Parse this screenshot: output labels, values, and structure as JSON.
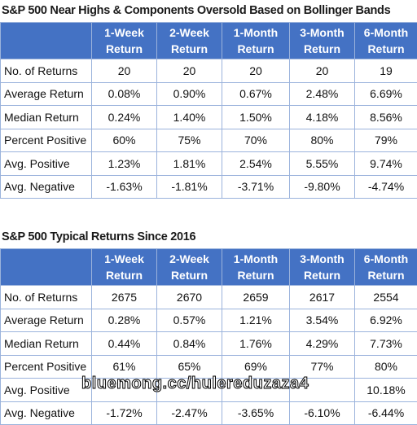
{
  "tables": [
    {
      "title": "S&P 500 Near Highs & Components Oversold Based on Bollinger Bands",
      "columns": [
        "1-Week Return",
        "2-Week Return",
        "1-Month Return",
        "3-Month Return",
        "6-Month Return"
      ],
      "rows": [
        [
          "No. of Returns",
          "20",
          "20",
          "20",
          "20",
          "19"
        ],
        [
          "Average Return",
          "0.08%",
          "0.90%",
          "0.67%",
          "2.48%",
          "6.69%"
        ],
        [
          "Median Return",
          "0.24%",
          "1.40%",
          "1.50%",
          "4.18%",
          "8.56%"
        ],
        [
          "Percent Positive",
          "60%",
          "75%",
          "70%",
          "80%",
          "79%"
        ],
        [
          "Avg. Positive",
          "1.23%",
          "1.81%",
          "2.54%",
          "5.55%",
          "9.74%"
        ],
        [
          "Avg. Negative",
          "-1.63%",
          "-1.81%",
          "-3.71%",
          "-9.80%",
          "-4.74%"
        ]
      ]
    },
    {
      "title": "S&P 500 Typical Returns Since 2016",
      "columns": [
        "1-Week Return",
        "2-Week Return",
        "1-Month Return",
        "3-Month Return",
        "6-Month Return"
      ],
      "rows": [
        [
          "No. of Returns",
          "2675",
          "2670",
          "2659",
          "2617",
          "2554"
        ],
        [
          "Average Return",
          "0.28%",
          "0.57%",
          "1.21%",
          "3.54%",
          "6.92%"
        ],
        [
          "Median Return",
          "0.44%",
          "0.84%",
          "1.76%",
          "4.29%",
          "7.73%"
        ],
        [
          "Percent Positive",
          "61%",
          "65%",
          "69%",
          "77%",
          "80%"
        ],
        [
          "Avg. Positive",
          null,
          null,
          null,
          null,
          "10.18%"
        ],
        [
          "Avg. Negative",
          "-1.72%",
          "-2.47%",
          "-3.65%",
          "-6.10%",
          "-6.44%"
        ]
      ]
    }
  ],
  "watermark": "bluemong.cc/hulereduzaza4"
}
